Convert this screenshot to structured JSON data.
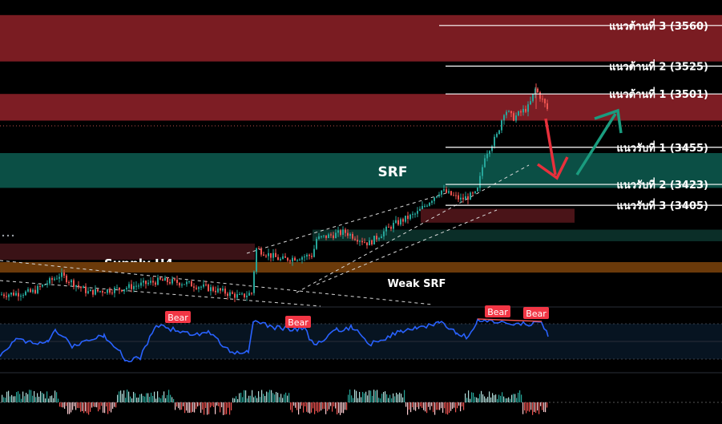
{
  "chart_data": {
    "type": "candlestick",
    "price_range": [
      3318,
      3582
    ],
    "levels": [
      {
        "label": "แนวต้านที่ 3 (3560)",
        "price": 3560,
        "kind": "resistance"
      },
      {
        "label": "แนวต้านที่ 2 (3525)",
        "price": 3525,
        "kind": "resistance"
      },
      {
        "label": "แนวต้านที่ 1 (3501)",
        "price": 3501,
        "kind": "resistance"
      },
      {
        "label": "แนวรับที่ 1 (3455)",
        "price": 3455,
        "kind": "support"
      },
      {
        "label": "แนวรับที่ 2 (3423)",
        "price": 3423,
        "kind": "support"
      },
      {
        "label": "แนวรับที่ 3 (3405)",
        "price": 3405,
        "kind": "support"
      }
    ],
    "zones": [
      {
        "label": "",
        "from": 3529,
        "to": 3569,
        "color": "#7a1c22"
      },
      {
        "label": "",
        "from": 3478,
        "to": 3501,
        "color": "#7d1d24"
      },
      {
        "label": "SRF",
        "from": 3420,
        "to": 3450,
        "color": "#0b4f45"
      },
      {
        "label": "",
        "from": 3390,
        "to": 3402,
        "color": "#4a1418"
      },
      {
        "label": "",
        "from": 3374,
        "to": 3384,
        "color": "#0b2e28"
      },
      {
        "label": "Supply H4",
        "from": 3358,
        "to": 3372,
        "color": "#3a1216"
      },
      {
        "label": "Weak SRF",
        "from": 3347,
        "to": 3356,
        "color": "#6b3a0a"
      }
    ],
    "indicator_tags": [
      "Bear",
      "Bear",
      "Bear",
      "Bear"
    ],
    "colors": {
      "bull": "#26a69a",
      "bear": "#ef5350",
      "indicator": "#2962ff",
      "arrow_up": "#1a9c7f",
      "arrow_down": "#e8303c"
    }
  }
}
